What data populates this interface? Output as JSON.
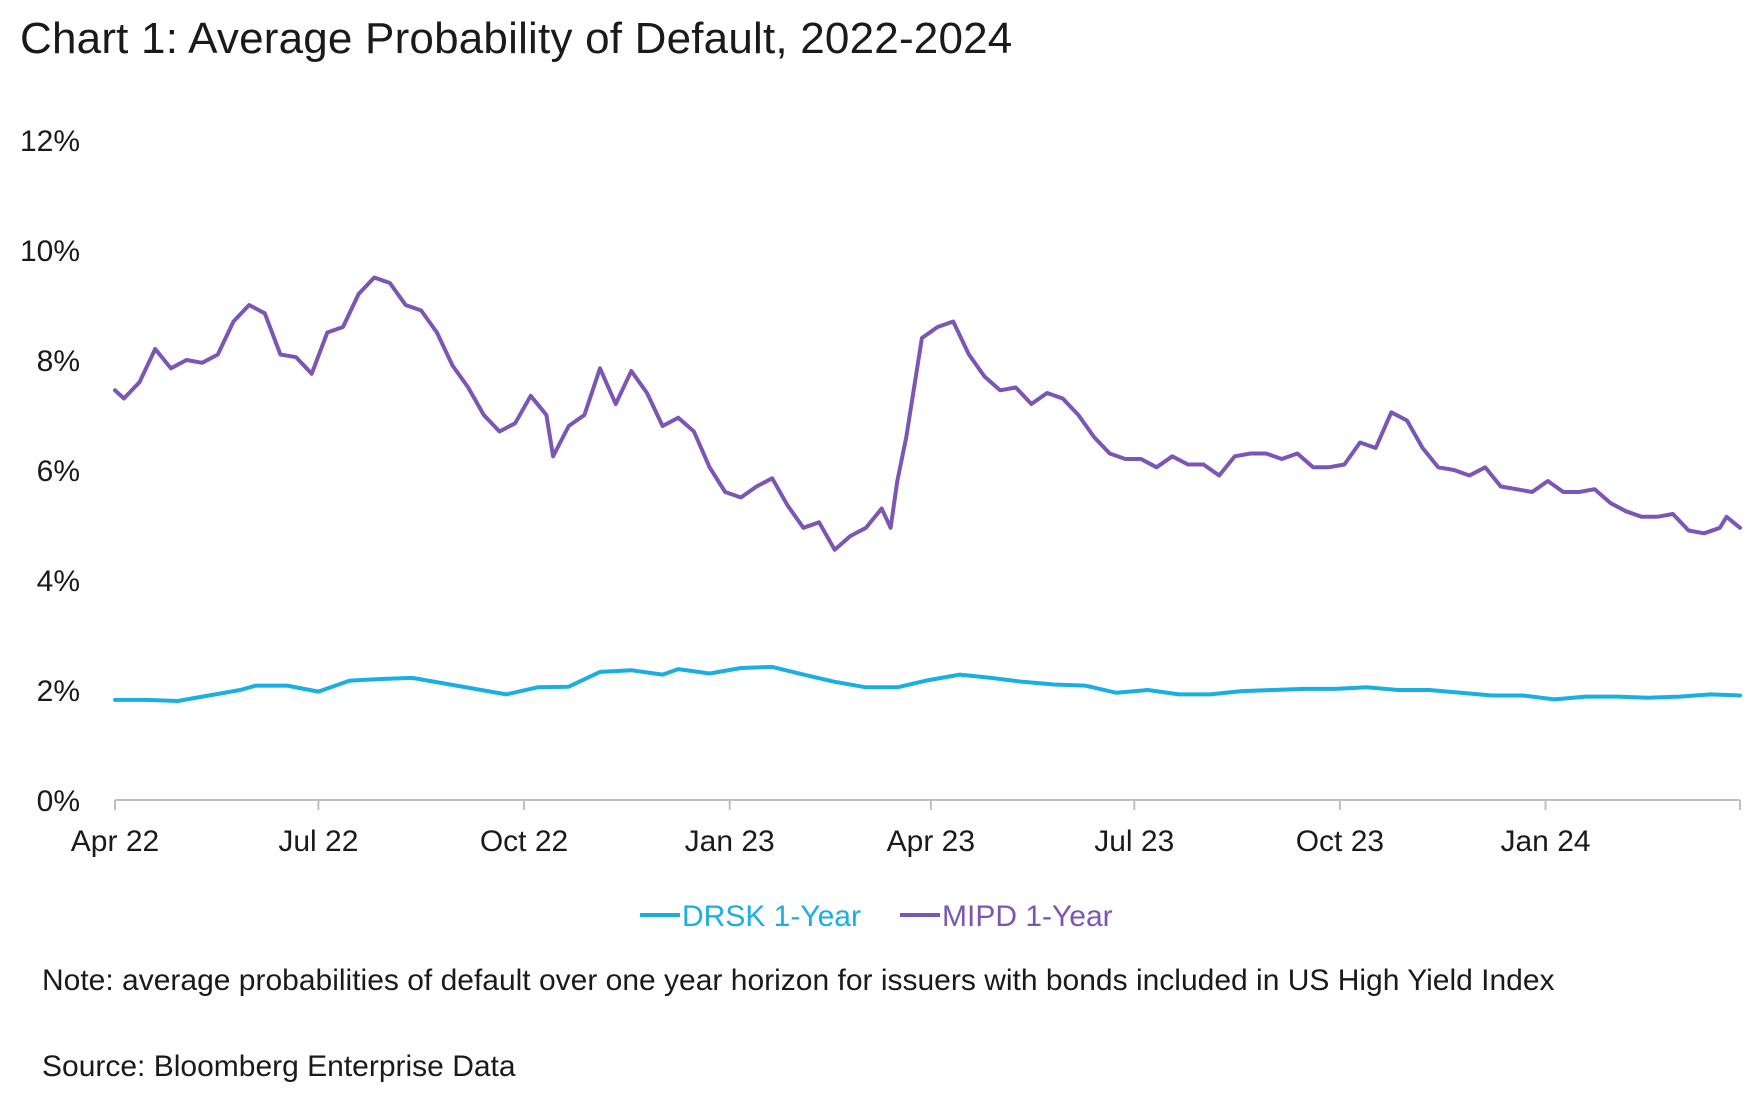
{
  "title": "Chart 1: Average Probability of Default, 2022-2024",
  "note": "Note: average probabilities of default over one year horizon for issuers with bonds included in US High Yield Index",
  "source": "Source: Bloomberg Enterprise Data",
  "colors": {
    "drsk": "#1BAEE1",
    "mipd": "#7B56B4",
    "axis": "#bfbfbf"
  },
  "chart_data": {
    "type": "line",
    "ylim": [
      0,
      12
    ],
    "ytick_labels": [
      "0%",
      "2%",
      "4%",
      "6%",
      "8%",
      "10%",
      "12%"
    ],
    "yticks": [
      0,
      2,
      4,
      6,
      8,
      10,
      12
    ],
    "xlim": [
      "2022-04-01",
      "2024-03-28"
    ],
    "xticks": [
      "2022-04-01",
      "2022-07-01",
      "2022-10-01",
      "2023-01-01",
      "2023-04-01",
      "2023-07-01",
      "2023-10-01",
      "2024-01-01"
    ],
    "xtick_labels": [
      "Apr 22",
      "Jul 22",
      "Oct 22",
      "Jan 23",
      "Apr 23",
      "Jul 23",
      "Oct 23",
      "Jan 24"
    ],
    "grid": false,
    "legend_position": "bottom-center",
    "series": [
      {
        "name": "DRSK 1-Year",
        "points": [
          [
            "2022-04-01",
            1.82
          ],
          [
            "2022-04-15",
            1.82
          ],
          [
            "2022-04-29",
            1.8
          ],
          [
            "2022-05-13",
            1.9
          ],
          [
            "2022-05-27",
            2.0
          ],
          [
            "2022-06-03",
            2.08
          ],
          [
            "2022-06-17",
            2.08
          ],
          [
            "2022-07-01",
            1.97
          ],
          [
            "2022-07-15",
            2.17
          ],
          [
            "2022-07-29",
            2.2
          ],
          [
            "2022-08-12",
            2.22
          ],
          [
            "2022-08-26",
            2.12
          ],
          [
            "2022-09-09",
            2.02
          ],
          [
            "2022-09-23",
            1.92
          ],
          [
            "2022-10-07",
            2.05
          ],
          [
            "2022-10-21",
            2.06
          ],
          [
            "2022-11-04",
            2.33
          ],
          [
            "2022-11-18",
            2.36
          ],
          [
            "2022-12-02",
            2.28
          ],
          [
            "2022-12-09",
            2.38
          ],
          [
            "2022-12-23",
            2.3
          ],
          [
            "2023-01-06",
            2.4
          ],
          [
            "2023-01-20",
            2.42
          ],
          [
            "2023-02-03",
            2.28
          ],
          [
            "2023-02-17",
            2.15
          ],
          [
            "2023-03-03",
            2.05
          ],
          [
            "2023-03-17",
            2.05
          ],
          [
            "2023-03-31",
            2.18
          ],
          [
            "2023-04-14",
            2.28
          ],
          [
            "2023-04-28",
            2.22
          ],
          [
            "2023-05-12",
            2.15
          ],
          [
            "2023-05-26",
            2.1
          ],
          [
            "2023-06-09",
            2.08
          ],
          [
            "2023-06-23",
            1.95
          ],
          [
            "2023-07-07",
            2.0
          ],
          [
            "2023-07-21",
            1.92
          ],
          [
            "2023-08-04",
            1.92
          ],
          [
            "2023-08-18",
            1.98
          ],
          [
            "2023-09-01",
            2.0
          ],
          [
            "2023-09-15",
            2.02
          ],
          [
            "2023-09-29",
            2.02
          ],
          [
            "2023-10-13",
            2.05
          ],
          [
            "2023-10-27",
            2.0
          ],
          [
            "2023-11-10",
            2.0
          ],
          [
            "2023-11-24",
            1.95
          ],
          [
            "2023-12-08",
            1.9
          ],
          [
            "2023-12-22",
            1.9
          ],
          [
            "2024-01-05",
            1.83
          ],
          [
            "2024-01-19",
            1.88
          ],
          [
            "2024-02-02",
            1.88
          ],
          [
            "2024-02-16",
            1.86
          ],
          [
            "2024-03-01",
            1.88
          ],
          [
            "2024-03-15",
            1.92
          ],
          [
            "2024-03-28",
            1.9
          ]
        ]
      },
      {
        "name": "MIPD 1-Year",
        "points": [
          [
            "2022-04-01",
            7.45
          ],
          [
            "2022-04-05",
            7.3
          ],
          [
            "2022-04-12",
            7.6
          ],
          [
            "2022-04-19",
            8.2
          ],
          [
            "2022-04-26",
            7.85
          ],
          [
            "2022-05-03",
            8.0
          ],
          [
            "2022-05-10",
            7.95
          ],
          [
            "2022-05-17",
            8.1
          ],
          [
            "2022-05-24",
            8.7
          ],
          [
            "2022-05-31",
            9.0
          ],
          [
            "2022-06-07",
            8.85
          ],
          [
            "2022-06-14",
            8.1
          ],
          [
            "2022-06-21",
            8.05
          ],
          [
            "2022-06-28",
            7.75
          ],
          [
            "2022-07-05",
            8.5
          ],
          [
            "2022-07-12",
            8.6
          ],
          [
            "2022-07-19",
            9.2
          ],
          [
            "2022-07-26",
            9.5
          ],
          [
            "2022-08-02",
            9.4
          ],
          [
            "2022-08-09",
            9.0
          ],
          [
            "2022-08-16",
            8.9
          ],
          [
            "2022-08-23",
            8.5
          ],
          [
            "2022-08-30",
            7.9
          ],
          [
            "2022-09-06",
            7.5
          ],
          [
            "2022-09-13",
            7.0
          ],
          [
            "2022-09-20",
            6.7
          ],
          [
            "2022-09-27",
            6.85
          ],
          [
            "2022-10-04",
            7.35
          ],
          [
            "2022-10-11",
            7.0
          ],
          [
            "2022-10-14",
            6.25
          ],
          [
            "2022-10-21",
            6.8
          ],
          [
            "2022-10-28",
            7.0
          ],
          [
            "2022-11-04",
            7.85
          ],
          [
            "2022-11-11",
            7.2
          ],
          [
            "2022-11-18",
            7.8
          ],
          [
            "2022-11-25",
            7.4
          ],
          [
            "2022-12-02",
            6.8
          ],
          [
            "2022-12-09",
            6.95
          ],
          [
            "2022-12-16",
            6.7
          ],
          [
            "2022-12-23",
            6.05
          ],
          [
            "2022-12-30",
            5.6
          ],
          [
            "2023-01-06",
            5.5
          ],
          [
            "2023-01-13",
            5.7
          ],
          [
            "2023-01-20",
            5.85
          ],
          [
            "2023-01-27",
            5.35
          ],
          [
            "2023-02-03",
            4.95
          ],
          [
            "2023-02-10",
            5.05
          ],
          [
            "2023-02-17",
            4.55
          ],
          [
            "2023-02-24",
            4.8
          ],
          [
            "2023-03-03",
            4.95
          ],
          [
            "2023-03-10",
            5.3
          ],
          [
            "2023-03-14",
            4.95
          ],
          [
            "2023-03-17",
            5.8
          ],
          [
            "2023-03-21",
            6.6
          ],
          [
            "2023-03-28",
            8.4
          ],
          [
            "2023-04-04",
            8.6
          ],
          [
            "2023-04-11",
            8.7
          ],
          [
            "2023-04-18",
            8.1
          ],
          [
            "2023-04-25",
            7.7
          ],
          [
            "2023-05-02",
            7.45
          ],
          [
            "2023-05-09",
            7.5
          ],
          [
            "2023-05-16",
            7.2
          ],
          [
            "2023-05-23",
            7.4
          ],
          [
            "2023-05-30",
            7.3
          ],
          [
            "2023-06-06",
            7.0
          ],
          [
            "2023-06-13",
            6.6
          ],
          [
            "2023-06-20",
            6.3
          ],
          [
            "2023-06-27",
            6.2
          ],
          [
            "2023-07-04",
            6.2
          ],
          [
            "2023-07-11",
            6.05
          ],
          [
            "2023-07-18",
            6.25
          ],
          [
            "2023-07-25",
            6.1
          ],
          [
            "2023-08-01",
            6.1
          ],
          [
            "2023-08-08",
            5.9
          ],
          [
            "2023-08-15",
            6.25
          ],
          [
            "2023-08-22",
            6.3
          ],
          [
            "2023-08-29",
            6.3
          ],
          [
            "2023-09-05",
            6.2
          ],
          [
            "2023-09-12",
            6.3
          ],
          [
            "2023-09-19",
            6.05
          ],
          [
            "2023-09-26",
            6.05
          ],
          [
            "2023-10-03",
            6.1
          ],
          [
            "2023-10-10",
            6.5
          ],
          [
            "2023-10-17",
            6.4
          ],
          [
            "2023-10-24",
            7.05
          ],
          [
            "2023-10-31",
            6.9
          ],
          [
            "2023-11-07",
            6.4
          ],
          [
            "2023-11-14",
            6.05
          ],
          [
            "2023-11-21",
            6.0
          ],
          [
            "2023-11-28",
            5.9
          ],
          [
            "2023-12-05",
            6.05
          ],
          [
            "2023-12-12",
            5.7
          ],
          [
            "2023-12-19",
            5.65
          ],
          [
            "2023-12-26",
            5.6
          ],
          [
            "2024-01-02",
            5.8
          ],
          [
            "2024-01-09",
            5.6
          ],
          [
            "2024-01-16",
            5.6
          ],
          [
            "2024-01-23",
            5.65
          ],
          [
            "2024-01-30",
            5.4
          ],
          [
            "2024-02-06",
            5.25
          ],
          [
            "2024-02-13",
            5.15
          ],
          [
            "2024-02-20",
            5.15
          ],
          [
            "2024-02-27",
            5.2
          ],
          [
            "2024-03-05",
            4.9
          ],
          [
            "2024-03-12",
            4.85
          ],
          [
            "2024-03-19",
            4.95
          ],
          [
            "2024-03-22",
            5.15
          ],
          [
            "2024-03-28",
            4.95
          ]
        ]
      }
    ]
  }
}
